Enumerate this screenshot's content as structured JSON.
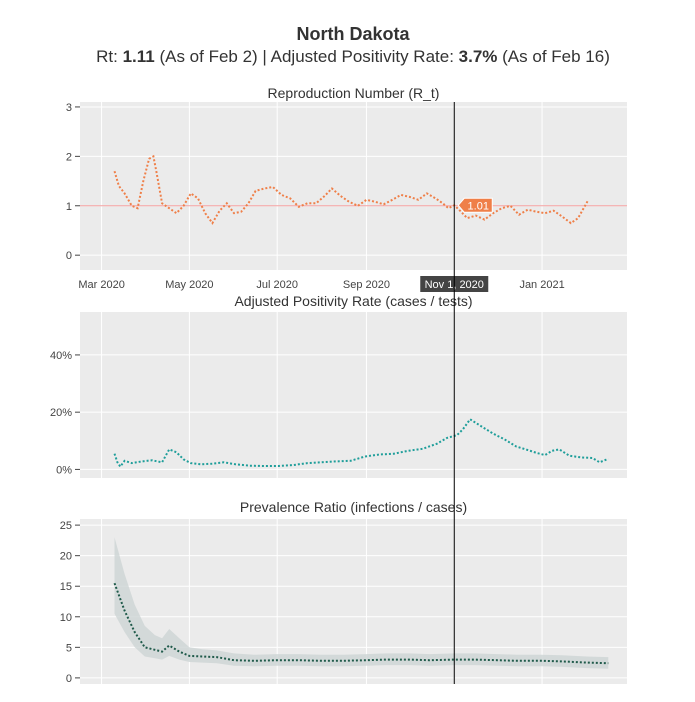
{
  "header": {
    "title": "North Dakota",
    "rt_label": "Rt: ",
    "rt_value": "1.11",
    "rt_asof": " (As of Feb 2) | Adjusted Positivity Rate: ",
    "pos_value": "3.7%",
    "pos_asof": " (As of Feb 16)"
  },
  "colors": {
    "rt_line": "#ef7f48",
    "pos_line": "#1f9e9a",
    "prev_line": "#1f5a4a",
    "prev_band": "#cfd6d6",
    "reference_line": "#f3a0a0",
    "panel_bg": "#ebebeb",
    "cursor": "#000000",
    "hover_label_bg": "#ef7f48"
  },
  "hover": {
    "date_label": "Nov 1, 2020",
    "rt_value_label": "1.01",
    "x": "2020-11-01"
  },
  "chart_data": [
    {
      "type": "line",
      "title": "Reproduction Number (R_t)",
      "xrange": [
        "2020-02-15",
        "2021-03-01"
      ],
      "ylim": [
        -0.3,
        3.1
      ],
      "yticks": [
        0,
        1,
        2,
        3
      ],
      "ytick_labels": [
        "0",
        "1",
        "2",
        "3"
      ],
      "xticks": [
        "2020-03-01",
        "2020-05-01",
        "2020-07-01",
        "2020-09-01",
        "2020-11-01",
        "2021-01-01"
      ],
      "xtick_labels": [
        "Mar 2020",
        "May 2020",
        "Jul 2020",
        "Sep 2020",
        "Nov 1, 2020",
        "Jan 2021"
      ],
      "reference_y": 1,
      "series": [
        {
          "x": [
            "2020-03-10",
            "2020-03-13",
            "2020-03-17",
            "2020-03-22",
            "2020-03-26",
            "2020-03-30",
            "2020-04-03",
            "2020-04-06",
            "2020-04-08",
            "2020-04-12",
            "2020-04-17",
            "2020-04-22",
            "2020-04-27",
            "2020-05-02",
            "2020-05-07",
            "2020-05-12",
            "2020-05-17",
            "2020-05-22",
            "2020-05-27",
            "2020-06-01",
            "2020-06-06",
            "2020-06-11",
            "2020-06-16",
            "2020-06-22",
            "2020-06-28",
            "2020-07-04",
            "2020-07-10",
            "2020-07-16",
            "2020-07-22",
            "2020-07-28",
            "2020-08-03",
            "2020-08-08",
            "2020-08-14",
            "2020-08-20",
            "2020-08-26",
            "2020-09-01",
            "2020-09-07",
            "2020-09-13",
            "2020-09-19",
            "2020-09-25",
            "2020-10-01",
            "2020-10-07",
            "2020-10-13",
            "2020-10-19",
            "2020-10-24",
            "2020-10-28",
            "2020-11-01",
            "2020-11-05",
            "2020-11-10",
            "2020-11-16",
            "2020-11-22",
            "2020-11-28",
            "2020-12-04",
            "2020-12-10",
            "2020-12-16",
            "2020-12-22",
            "2020-12-28",
            "2021-01-03",
            "2021-01-09",
            "2021-01-15",
            "2021-01-21",
            "2021-01-26",
            "2021-02-02"
          ],
          "values": [
            1.7,
            1.4,
            1.25,
            1.0,
            0.95,
            1.5,
            1.95,
            2.0,
            1.7,
            1.05,
            0.95,
            0.85,
            1.0,
            1.25,
            1.15,
            0.85,
            0.65,
            0.9,
            1.05,
            0.85,
            0.88,
            1.05,
            1.3,
            1.35,
            1.38,
            1.22,
            1.15,
            0.98,
            1.05,
            1.05,
            1.2,
            1.35,
            1.2,
            1.08,
            1.0,
            1.12,
            1.08,
            1.03,
            1.12,
            1.22,
            1.18,
            1.12,
            1.25,
            1.15,
            1.05,
            0.95,
            1.01,
            0.9,
            0.75,
            0.8,
            0.72,
            0.85,
            0.95,
            1.0,
            0.82,
            0.92,
            0.88,
            0.85,
            0.9,
            0.78,
            0.65,
            0.75,
            1.11
          ]
        }
      ]
    },
    {
      "type": "line",
      "title": "Adjusted Positivity Rate (cases / tests)",
      "xrange": [
        "2020-02-15",
        "2021-03-01"
      ],
      "ylim": [
        -0.03,
        0.55
      ],
      "yticks": [
        0,
        0.2,
        0.4
      ],
      "ytick_labels": [
        "0%",
        "20%",
        "40%"
      ],
      "series": [
        {
          "x": [
            "2020-03-10",
            "2020-03-12",
            "2020-03-14",
            "2020-03-17",
            "2020-03-22",
            "2020-03-29",
            "2020-04-05",
            "2020-04-12",
            "2020-04-17",
            "2020-04-22",
            "2020-04-27",
            "2020-05-02",
            "2020-05-09",
            "2020-05-17",
            "2020-05-25",
            "2020-06-02",
            "2020-06-12",
            "2020-06-22",
            "2020-07-02",
            "2020-07-12",
            "2020-07-22",
            "2020-08-01",
            "2020-08-11",
            "2020-08-21",
            "2020-08-31",
            "2020-09-10",
            "2020-09-20",
            "2020-09-30",
            "2020-10-10",
            "2020-10-20",
            "2020-10-27",
            "2020-11-03",
            "2020-11-07",
            "2020-11-12",
            "2020-11-20",
            "2020-11-28",
            "2020-12-06",
            "2020-12-14",
            "2020-12-22",
            "2020-12-28",
            "2021-01-03",
            "2021-01-08",
            "2021-01-13",
            "2021-01-20",
            "2021-01-28",
            "2021-02-05",
            "2021-02-10",
            "2021-02-16"
          ],
          "values": [
            0.055,
            0.025,
            0.01,
            0.03,
            0.022,
            0.028,
            0.032,
            0.025,
            0.07,
            0.06,
            0.035,
            0.022,
            0.018,
            0.02,
            0.025,
            0.018,
            0.013,
            0.012,
            0.012,
            0.015,
            0.022,
            0.025,
            0.028,
            0.03,
            0.045,
            0.052,
            0.055,
            0.065,
            0.072,
            0.09,
            0.11,
            0.12,
            0.14,
            0.175,
            0.15,
            0.125,
            0.105,
            0.08,
            0.068,
            0.058,
            0.05,
            0.065,
            0.07,
            0.048,
            0.042,
            0.04,
            0.025,
            0.037
          ]
        }
      ]
    },
    {
      "type": "area",
      "title": "Prevalence Ratio (infections / cases)",
      "xrange": [
        "2020-02-15",
        "2021-03-01"
      ],
      "ylim": [
        -1,
        26
      ],
      "yticks": [
        0,
        5,
        10,
        15,
        20,
        25
      ],
      "ytick_labels": [
        "0",
        "5",
        "10",
        "15",
        "20",
        "25"
      ],
      "series": [
        {
          "x": [
            "2020-03-10",
            "2020-03-17",
            "2020-03-24",
            "2020-03-31",
            "2020-04-07",
            "2020-04-12",
            "2020-04-17",
            "2020-04-24",
            "2020-05-01",
            "2020-05-10",
            "2020-05-20",
            "2020-06-01",
            "2020-06-15",
            "2020-07-01",
            "2020-07-15",
            "2020-08-01",
            "2020-08-15",
            "2020-09-01",
            "2020-09-15",
            "2020-10-01",
            "2020-10-15",
            "2020-11-01",
            "2020-11-15",
            "2020-12-01",
            "2020-12-15",
            "2021-01-01",
            "2021-01-15",
            "2021-02-01",
            "2021-02-16"
          ],
          "values": [
            15.5,
            11.0,
            7.5,
            5.0,
            4.6,
            4.3,
            5.3,
            4.3,
            3.6,
            3.5,
            3.4,
            2.9,
            2.8,
            2.9,
            2.9,
            2.8,
            2.8,
            2.9,
            3.0,
            3.0,
            2.9,
            3.0,
            3.0,
            2.9,
            2.8,
            2.8,
            2.7,
            2.5,
            2.4
          ],
          "upper": [
            23.0,
            17.0,
            12.0,
            8.5,
            7.0,
            6.5,
            8.0,
            6.5,
            5.0,
            4.7,
            4.5,
            4.0,
            3.8,
            3.9,
            3.9,
            3.8,
            3.8,
            3.9,
            4.0,
            4.0,
            3.9,
            4.0,
            4.0,
            3.9,
            3.8,
            3.8,
            3.7,
            3.5,
            3.4
          ],
          "lower": [
            10.5,
            7.5,
            5.0,
            3.5,
            3.2,
            3.0,
            3.6,
            3.0,
            2.6,
            2.5,
            2.4,
            2.0,
            1.9,
            2.0,
            2.0,
            1.9,
            1.9,
            2.0,
            2.1,
            2.1,
            2.0,
            2.1,
            2.1,
            2.0,
            1.9,
            1.9,
            1.8,
            1.6,
            1.5
          ]
        }
      ]
    }
  ]
}
